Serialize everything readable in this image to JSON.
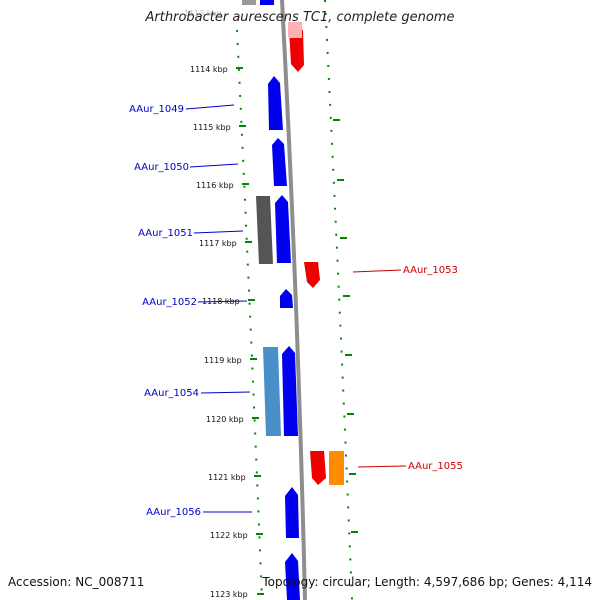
{
  "title": "Arthrobacter aurescens TC1, complete genome",
  "footer": {
    "accession": "Accession: NC_008711",
    "topology": "Topology: circular; Length: 4,597,686 bp; Genes: 4,114"
  },
  "colors": {
    "forward_gene": "#0000ee",
    "reverse_gene": "#ee0000",
    "orange_gene": "#ff8c00",
    "gray_gene": "#555555",
    "light_blue_gene": "#4a90c8",
    "backbone": "#909090",
    "tick": "#008800",
    "left_label": "#0000cc",
    "right_label": "#cc0000"
  },
  "ticks": [
    {
      "label": "1113 kbp",
      "faded": true
    },
    {
      "label": "1114 kbp"
    },
    {
      "label": "1115 kbp"
    },
    {
      "label": "1116 kbp"
    },
    {
      "label": "1117 kbp"
    },
    {
      "label": "1118 kbp"
    },
    {
      "label": "1119 kbp"
    },
    {
      "label": "1120 kbp"
    },
    {
      "label": "1121 kbp"
    },
    {
      "label": "1122 kbp"
    },
    {
      "label": "1123 kbp"
    }
  ],
  "gene_labels": {
    "left": [
      "AAur_1049",
      "AAur_1050",
      "AAur_1051",
      "AAur_1052",
      "AAur_1054",
      "AAur_1056"
    ],
    "right": [
      "AAur_1053",
      "AAur_1055"
    ]
  }
}
